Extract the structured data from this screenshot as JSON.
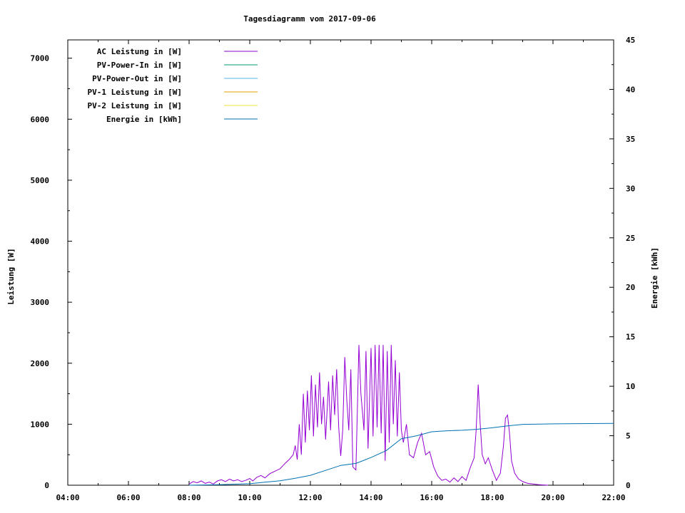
{
  "chart_data": {
    "type": "line",
    "title": "Tagesdiagramm vom 2017-09-06",
    "ylabel": "Leistung [W]",
    "y2label": "Energie [kWh]",
    "xlim": [
      "04:00",
      "22:00"
    ],
    "ylim": [
      0,
      7300
    ],
    "y2lim": [
      0,
      45
    ],
    "x_ticks": [
      "04:00",
      "06:00",
      "08:00",
      "10:00",
      "12:00",
      "14:00",
      "16:00",
      "18:00",
      "20:00",
      "22:00"
    ],
    "y_ticks": [
      0,
      1000,
      2000,
      3000,
      4000,
      5000,
      6000,
      7000
    ],
    "y2_ticks": [
      0,
      5,
      10,
      15,
      20,
      25,
      30,
      35,
      40,
      45
    ],
    "grid": false,
    "legend_position": "top-left",
    "series": [
      {
        "name": "AC Leistung in [W]",
        "color": "#9400d3",
        "axis": "y",
        "points": [
          [
            "08:00",
            20
          ],
          [
            "08:08",
            60
          ],
          [
            "08:16",
            40
          ],
          [
            "08:24",
            70
          ],
          [
            "08:32",
            30
          ],
          [
            "08:40",
            50
          ],
          [
            "08:48",
            20
          ],
          [
            "08:56",
            70
          ],
          [
            "09:04",
            90
          ],
          [
            "09:12",
            60
          ],
          [
            "09:20",
            100
          ],
          [
            "09:28",
            70
          ],
          [
            "09:36",
            90
          ],
          [
            "09:44",
            60
          ],
          [
            "09:52",
            80
          ],
          [
            "10:00",
            110
          ],
          [
            "10:06",
            70
          ],
          [
            "10:14",
            130
          ],
          [
            "10:22",
            160
          ],
          [
            "10:30",
            120
          ],
          [
            "10:40",
            190
          ],
          [
            "10:50",
            230
          ],
          [
            "11:00",
            270
          ],
          [
            "11:10",
            360
          ],
          [
            "11:18",
            420
          ],
          [
            "11:26",
            500
          ],
          [
            "11:30",
            650
          ],
          [
            "11:34",
            420
          ],
          [
            "11:38",
            1000
          ],
          [
            "11:42",
            500
          ],
          [
            "11:46",
            1500
          ],
          [
            "11:50",
            700
          ],
          [
            "11:54",
            1550
          ],
          [
            "11:58",
            900
          ],
          [
            "12:02",
            1800
          ],
          [
            "12:06",
            800
          ],
          [
            "12:10",
            1650
          ],
          [
            "12:14",
            950
          ],
          [
            "12:18",
            1850
          ],
          [
            "12:22",
            1000
          ],
          [
            "12:26",
            1450
          ],
          [
            "12:30",
            750
          ],
          [
            "12:36",
            1700
          ],
          [
            "12:40",
            900
          ],
          [
            "12:44",
            1800
          ],
          [
            "12:48",
            1150
          ],
          [
            "12:52",
            1900
          ],
          [
            "12:56",
            950
          ],
          [
            "13:00",
            480
          ],
          [
            "13:04",
            900
          ],
          [
            "13:08",
            2100
          ],
          [
            "13:12",
            1400
          ],
          [
            "13:16",
            900
          ],
          [
            "13:20",
            1900
          ],
          [
            "13:24",
            300
          ],
          [
            "13:30",
            250
          ],
          [
            "13:36",
            2300
          ],
          [
            "13:40",
            1500
          ],
          [
            "13:46",
            900
          ],
          [
            "13:50",
            2200
          ],
          [
            "13:54",
            600
          ],
          [
            "14:00",
            2250
          ],
          [
            "14:04",
            800
          ],
          [
            "14:08",
            2300
          ],
          [
            "14:12",
            950
          ],
          [
            "14:16",
            2300
          ],
          [
            "14:20",
            850
          ],
          [
            "14:24",
            2300
          ],
          [
            "14:28",
            400
          ],
          [
            "14:32",
            2200
          ],
          [
            "14:36",
            700
          ],
          [
            "14:40",
            2300
          ],
          [
            "14:44",
            1000
          ],
          [
            "14:48",
            2050
          ],
          [
            "14:52",
            800
          ],
          [
            "14:56",
            1850
          ],
          [
            "15:00",
            900
          ],
          [
            "15:04",
            700
          ],
          [
            "15:10",
            1000
          ],
          [
            "15:16",
            500
          ],
          [
            "15:24",
            450
          ],
          [
            "15:32",
            700
          ],
          [
            "15:40",
            850
          ],
          [
            "15:48",
            500
          ],
          [
            "15:56",
            550
          ],
          [
            "16:04",
            300
          ],
          [
            "16:12",
            150
          ],
          [
            "16:20",
            80
          ],
          [
            "16:28",
            100
          ],
          [
            "16:36",
            50
          ],
          [
            "16:44",
            120
          ],
          [
            "16:52",
            60
          ],
          [
            "17:00",
            140
          ],
          [
            "17:08",
            80
          ],
          [
            "17:16",
            280
          ],
          [
            "17:24",
            450
          ],
          [
            "17:28",
            900
          ],
          [
            "17:32",
            1650
          ],
          [
            "17:36",
            1000
          ],
          [
            "17:40",
            500
          ],
          [
            "17:46",
            350
          ],
          [
            "17:52",
            450
          ],
          [
            "18:00",
            250
          ],
          [
            "18:08",
            80
          ],
          [
            "18:16",
            200
          ],
          [
            "18:22",
            650
          ],
          [
            "18:26",
            1100
          ],
          [
            "18:30",
            1150
          ],
          [
            "18:34",
            850
          ],
          [
            "18:38",
            400
          ],
          [
            "18:44",
            200
          ],
          [
            "18:52",
            100
          ],
          [
            "19:00",
            60
          ],
          [
            "19:10",
            30
          ],
          [
            "19:20",
            20
          ],
          [
            "19:30",
            10
          ],
          [
            "19:40",
            5
          ],
          [
            "19:50",
            0
          ]
        ]
      },
      {
        "name": "PV-Power-In in [W]",
        "color": "#009e73",
        "axis": "y",
        "points": []
      },
      {
        "name": "PV-Power-Out in [W]",
        "color": "#56b4e9",
        "axis": "y",
        "points": []
      },
      {
        "name": "PV-1 Leistung in [W]",
        "color": "#e69f00",
        "axis": "y",
        "points": []
      },
      {
        "name": "PV-2 Leistung in [W]",
        "color": "#f0e442",
        "axis": "y",
        "points": []
      },
      {
        "name": "Energie in [kWh]",
        "color": "#0072b2",
        "axis": "y2",
        "points": [
          [
            "08:00",
            0
          ],
          [
            "09:00",
            0.05
          ],
          [
            "10:00",
            0.15
          ],
          [
            "10:30",
            0.3
          ],
          [
            "11:00",
            0.45
          ],
          [
            "11:30",
            0.7
          ],
          [
            "12:00",
            1.0
          ],
          [
            "12:30",
            1.5
          ],
          [
            "13:00",
            2.0
          ],
          [
            "13:30",
            2.2
          ],
          [
            "14:00",
            2.8
          ],
          [
            "14:30",
            3.5
          ],
          [
            "15:00",
            4.7
          ],
          [
            "15:30",
            5.0
          ],
          [
            "16:00",
            5.4
          ],
          [
            "16:30",
            5.5
          ],
          [
            "17:00",
            5.55
          ],
          [
            "17:30",
            5.65
          ],
          [
            "18:00",
            5.8
          ],
          [
            "18:30",
            6.0
          ],
          [
            "19:00",
            6.15
          ],
          [
            "20:00",
            6.2
          ],
          [
            "22:00",
            6.25
          ]
        ]
      }
    ]
  }
}
